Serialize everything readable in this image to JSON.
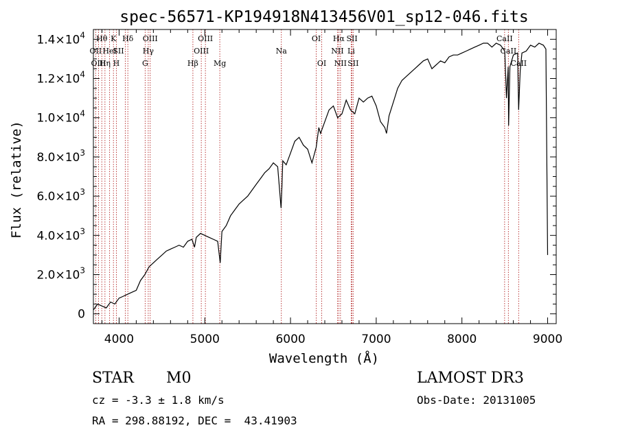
{
  "chart_data": {
    "type": "line",
    "title": "spec-56571-KP194918N413456V01_sp12-046.fits",
    "xlabel": "Wavelength (Å)",
    "ylabel": "Flux (relative)",
    "xlim": [
      3700,
      9100
    ],
    "ylim": [
      -500,
      14500
    ],
    "x_ticks": [
      {
        "value": 4000,
        "label": "4000"
      },
      {
        "value": 5000,
        "label": "5000"
      },
      {
        "value": 6000,
        "label": "6000"
      },
      {
        "value": 7000,
        "label": "7000"
      },
      {
        "value": 8000,
        "label": "8000"
      },
      {
        "value": 9000,
        "label": "9000"
      }
    ],
    "y_ticks": [
      {
        "value": 0,
        "mant": "0",
        "exp": ""
      },
      {
        "value": 2000,
        "mant": "2.0×10",
        "exp": "3"
      },
      {
        "value": 4000,
        "mant": "4.0×10",
        "exp": "3"
      },
      {
        "value": 6000,
        "mant": "6.0×10",
        "exp": "3"
      },
      {
        "value": 8000,
        "mant": "8.0×10",
        "exp": "3"
      },
      {
        "value": 10000,
        "mant": "1.0×10",
        "exp": "4"
      },
      {
        "value": 12000,
        "mant": "1.2×10",
        "exp": "4"
      },
      {
        "value": 14000,
        "mant": "1.4×10",
        "exp": "4"
      }
    ],
    "spectrum": {
      "name": "flux",
      "x": [
        3700,
        3750,
        3800,
        3850,
        3900,
        3950,
        4000,
        4050,
        4100,
        4150,
        4200,
        4250,
        4300,
        4350,
        4400,
        4450,
        4500,
        4550,
        4600,
        4650,
        4700,
        4750,
        4800,
        4850,
        4880,
        4900,
        4950,
        5000,
        5050,
        5100,
        5150,
        5180,
        5200,
        5250,
        5300,
        5350,
        5400,
        5450,
        5500,
        5550,
        5600,
        5650,
        5700,
        5750,
        5800,
        5850,
        5890,
        5900,
        5910,
        5950,
        6000,
        6050,
        6100,
        6150,
        6200,
        6250,
        6300,
        6330,
        6350,
        6400,
        6450,
        6500,
        6550,
        6600,
        6650,
        6700,
        6750,
        6800,
        6850,
        6900,
        6950,
        7000,
        7050,
        7100,
        7120,
        7150,
        7200,
        7250,
        7300,
        7350,
        7400,
        7450,
        7500,
        7550,
        7600,
        7650,
        7700,
        7750,
        7800,
        7850,
        7900,
        7950,
        8000,
        8050,
        8100,
        8150,
        8200,
        8250,
        8300,
        8350,
        8400,
        8450,
        8500,
        8520,
        8540,
        8545,
        8560,
        8600,
        8650,
        8662,
        8680,
        8700,
        8750,
        8800,
        8850,
        8900,
        8950,
        8980,
        9000
      ],
      "y": [
        200,
        500,
        400,
        300,
        600,
        500,
        800,
        900,
        1000,
        1100,
        1200,
        1700,
        2000,
        2400,
        2600,
        2800,
        3000,
        3200,
        3300,
        3400,
        3500,
        3400,
        3700,
        3800,
        3400,
        3900,
        4100,
        4000,
        3900,
        3800,
        3700,
        2600,
        4200,
        4500,
        5000,
        5300,
        5600,
        5800,
        6000,
        6300,
        6600,
        6900,
        7200,
        7400,
        7700,
        7500,
        5400,
        6500,
        7800,
        7600,
        8200,
        8800,
        9000,
        8600,
        8400,
        7700,
        8500,
        9500,
        9200,
        9800,
        10400,
        10600,
        10000,
        10200,
        10900,
        10400,
        10200,
        11000,
        10800,
        11000,
        11100,
        10600,
        9800,
        9500,
        9200,
        10100,
        10800,
        11500,
        11900,
        12100,
        12300,
        12500,
        12700,
        12900,
        13000,
        12500,
        12700,
        12900,
        12800,
        13100,
        13200,
        13200,
        13300,
        13400,
        13500,
        13600,
        13700,
        13800,
        13800,
        13600,
        13800,
        13700,
        13400,
        11000,
        12600,
        9600,
        12600,
        13200,
        13300,
        10400,
        12400,
        13300,
        13400,
        13700,
        13600,
        13800,
        13700,
        13500,
        3000
      ],
      "color": "#000000"
    },
    "lines": [
      {
        "name": "Hθ",
        "wave": 3798,
        "label_row": 0,
        "label_dx": 0
      },
      {
        "name": "OII",
        "wave": 3727,
        "label_row": 1,
        "label_dx": 0
      },
      {
        "name": "OIII",
        "wave": 3760,
        "label_row": 2,
        "label_dx": 0
      },
      {
        "name": "Hη",
        "wave": 3835,
        "label_row": 2,
        "label_dx": 0
      },
      {
        "name": "HeI",
        "wave": 3889,
        "label_row": 1,
        "label_dx": 0
      },
      {
        "name": "K",
        "wave": 3934,
        "label_row": 0,
        "label_dx": 0
      },
      {
        "name": "H",
        "wave": 3968,
        "label_row": 2,
        "label_dx": 0
      },
      {
        "name": "SII",
        "wave": 4072,
        "label_row": 1,
        "label_dx": -10
      },
      {
        "name": "Hδ",
        "wave": 4102,
        "label_row": 0,
        "label_dx": 0
      },
      {
        "name": "OIII",
        "wave": 4363,
        "label_row": 0,
        "label_dx": 0
      },
      {
        "name": "Hγ",
        "wave": 4340,
        "label_row": 1,
        "label_dx": 0
      },
      {
        "name": "G",
        "wave": 4304,
        "label_row": 2,
        "label_dx": 0
      },
      {
        "name": "Hβ",
        "wave": 4861,
        "label_row": 2,
        "label_dx": 0
      },
      {
        "name": "OIII",
        "wave": 5007,
        "label_row": 0,
        "label_dx": 0
      },
      {
        "name": "OIII",
        "wave": 4959,
        "label_row": 1,
        "label_dx": 0
      },
      {
        "name": "Mg",
        "wave": 5175,
        "label_row": 2,
        "label_dx": 0
      },
      {
        "name": "Na",
        "wave": 5893,
        "label_row": 1,
        "label_dx": 0
      },
      {
        "name": "OI",
        "wave": 6300,
        "label_row": 0,
        "label_dx": 0
      },
      {
        "name": "OI",
        "wave": 6364,
        "label_row": 2,
        "label_dx": 0
      },
      {
        "name": "Hα",
        "wave": 6563,
        "label_row": 0,
        "label_dx": 0
      },
      {
        "name": "NII",
        "wave": 6548,
        "label_row": 1,
        "label_dx": 0
      },
      {
        "name": "NII",
        "wave": 6583,
        "label_row": 2,
        "label_dx": 0
      },
      {
        "name": "SII",
        "wave": 6717,
        "label_row": 0,
        "label_dx": 0
      },
      {
        "name": "Li",
        "wave": 6708,
        "label_row": 1,
        "label_dx": 0
      },
      {
        "name": "SII",
        "wave": 6731,
        "label_row": 2,
        "label_dx": 0
      },
      {
        "name": "CaII",
        "wave": 8498,
        "label_row": 0,
        "label_dx": 0
      },
      {
        "name": "CaII",
        "wave": 8542,
        "label_row": 1,
        "label_dx": 0
      },
      {
        "name": "CaII",
        "wave": 8662,
        "label_row": 2,
        "label_dx": 0
      }
    ]
  },
  "footer": {
    "object_class": "STAR",
    "subclass": "M0",
    "survey": "LAMOST DR3",
    "redshift": "cz = -3.3 ± 1.8 km/s",
    "obs_date": "Obs-Date: 20131005",
    "coords": "RA = 298.88192, DEC =  43.41903"
  }
}
